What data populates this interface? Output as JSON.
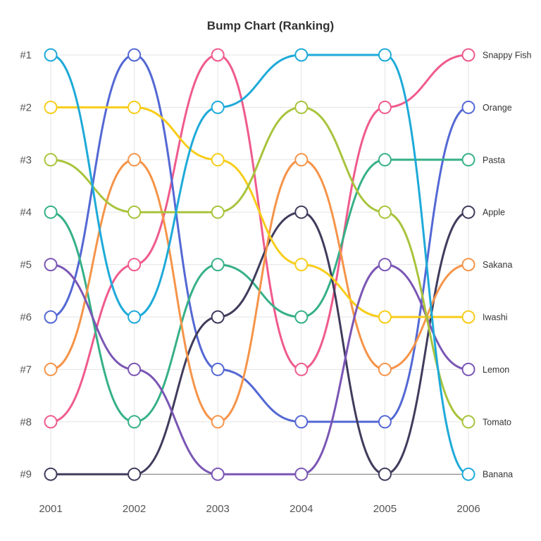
{
  "chart_data": {
    "type": "line",
    "subtype": "bump",
    "title": "Bump Chart (Ranking)",
    "xlabel": "",
    "ylabel": "",
    "x": [
      "2001",
      "2002",
      "2003",
      "2004",
      "2005",
      "2006"
    ],
    "y_ticks": [
      "#1",
      "#2",
      "#3",
      "#4",
      "#5",
      "#6",
      "#7",
      "#8",
      "#9"
    ],
    "ylim": [
      1,
      9
    ],
    "y_inverted": true,
    "grid": true,
    "legend": "end-of-line labels (right)",
    "series": [
      {
        "name": "Snappy Fish",
        "color": "#ef5b8c",
        "values": [
          8,
          5,
          1,
          7,
          2,
          1
        ]
      },
      {
        "name": "Orange",
        "color": "#5468d4",
        "values": [
          6,
          1,
          7,
          8,
          8,
          2
        ]
      },
      {
        "name": "Pasta",
        "color": "#36b088",
        "values": [
          4,
          8,
          5,
          6,
          3,
          3
        ]
      },
      {
        "name": "Apple",
        "color": "#3f3c5c",
        "values": [
          9,
          9,
          6,
          4,
          9,
          4
        ]
      },
      {
        "name": "Sakana",
        "color": "#f59449",
        "values": [
          7,
          3,
          8,
          3,
          7,
          5
        ]
      },
      {
        "name": "Iwashi",
        "color": "#f7cd1a",
        "values": [
          2,
          2,
          3,
          5,
          6,
          6
        ]
      },
      {
        "name": "Lemon",
        "color": "#7a56b4",
        "values": [
          5,
          7,
          9,
          9,
          5,
          7
        ]
      },
      {
        "name": "Tomato",
        "color": "#a8c43d",
        "values": [
          3,
          4,
          4,
          2,
          4,
          8
        ]
      },
      {
        "name": "Banana",
        "color": "#1eaad9",
        "values": [
          1,
          6,
          2,
          1,
          1,
          9
        ]
      }
    ]
  }
}
